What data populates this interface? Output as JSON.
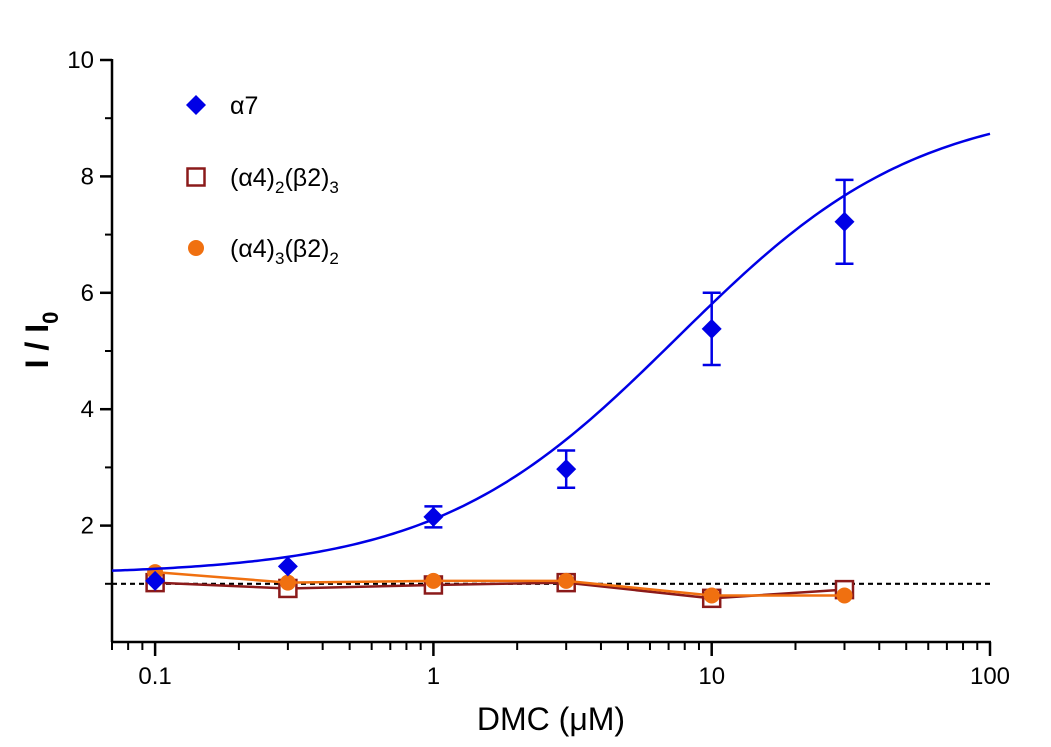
{
  "chart_data": {
    "type": "scatter",
    "title": "",
    "xlabel": "DMC (μM)",
    "ylabel": {
      "main": "I / I",
      "sub": "0"
    },
    "xscale": "log",
    "xlim": [
      0.07,
      100
    ],
    "ylim": [
      0,
      10
    ],
    "x_ticks": [
      {
        "value": 0.1,
        "label": "0.1"
      },
      {
        "value": 1,
        "label": "1"
      },
      {
        "value": 10,
        "label": "10"
      },
      {
        "value": 100,
        "label": "100"
      }
    ],
    "y_ticks": [
      {
        "value": 2,
        "label": "2"
      },
      {
        "value": 4,
        "label": "4"
      },
      {
        "value": 6,
        "label": "6"
      },
      {
        "value": 8,
        "label": "8"
      },
      {
        "value": 10,
        "label": "10"
      }
    ],
    "reference_line": {
      "y": 1,
      "style": "dashed",
      "color": "#000000"
    },
    "grid": false,
    "legend_position": "top-left",
    "series": [
      {
        "name": "α7",
        "legend_label": {
          "base": "α7",
          "parts": []
        },
        "marker": "diamond",
        "color": "#0000e6",
        "x": [
          0.1,
          0.3,
          1,
          3,
          10,
          30
        ],
        "y": [
          1.05,
          1.3,
          2.15,
          2.97,
          5.38,
          7.22
        ],
        "yerr": [
          0,
          0,
          0.18,
          0.32,
          0.62,
          0.72
        ],
        "fit": {
          "type": "hill",
          "bottom": 1.15,
          "top": 9.3,
          "ec50": 7.5,
          "hill": 1.0,
          "x_range": [
            0.07,
            100
          ]
        }
      },
      {
        "name": "(α4)2(β2)3",
        "legend_label": {
          "parts": [
            {
              "t": "(α4)",
              "sub": "2"
            },
            {
              "t": "(β2)",
              "sub": "3"
            }
          ]
        },
        "marker": "open-square",
        "color": "#8b1a1a",
        "x": [
          0.1,
          0.3,
          1,
          3,
          10,
          30
        ],
        "y": [
          1.02,
          0.92,
          0.98,
          1.02,
          0.75,
          0.9
        ],
        "connect": true
      },
      {
        "name": "(α4)3(β2)2",
        "legend_label": {
          "parts": [
            {
              "t": "(α4)",
              "sub": "3"
            },
            {
              "t": "(β2)",
              "sub": "2"
            }
          ]
        },
        "marker": "filled-circle",
        "color": "#f07010",
        "x": [
          0.1,
          0.3,
          1,
          3,
          10,
          30
        ],
        "y": [
          1.2,
          1.02,
          1.05,
          1.05,
          0.8,
          0.8
        ],
        "connect": true
      }
    ]
  }
}
